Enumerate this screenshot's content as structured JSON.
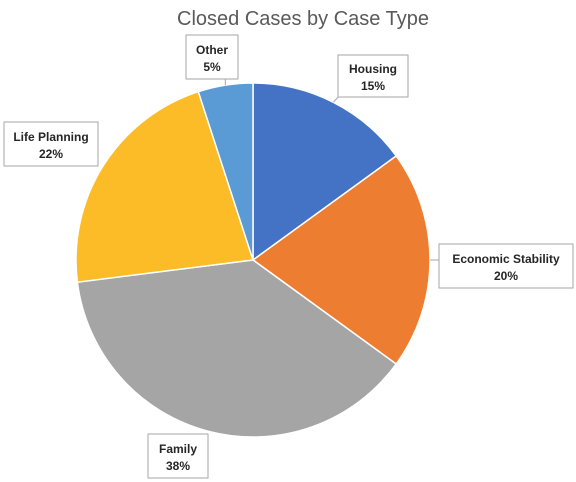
{
  "chart_data": {
    "type": "pie",
    "title": "Closed Cases by Case Type",
    "slices": [
      {
        "label": "Housing",
        "value": 15,
        "value_label": "15%",
        "color": "#4472c4"
      },
      {
        "label": "Economic Stability",
        "value": 20,
        "value_label": "20%",
        "color": "#ed7d31"
      },
      {
        "label": "Family",
        "value": 38,
        "value_label": "38%",
        "color": "#a5a5a5"
      },
      {
        "label": "Life Planning",
        "value": 22,
        "value_label": "22%",
        "color": "#fbbc28"
      },
      {
        "label": "Other",
        "value": 5,
        "value_label": "5%",
        "color": "#5b9bd5"
      }
    ],
    "start_position": "12 o'clock",
    "direction": "clockwise",
    "legend": "none",
    "data_labels": "callouts outside with category name and percentage"
  }
}
